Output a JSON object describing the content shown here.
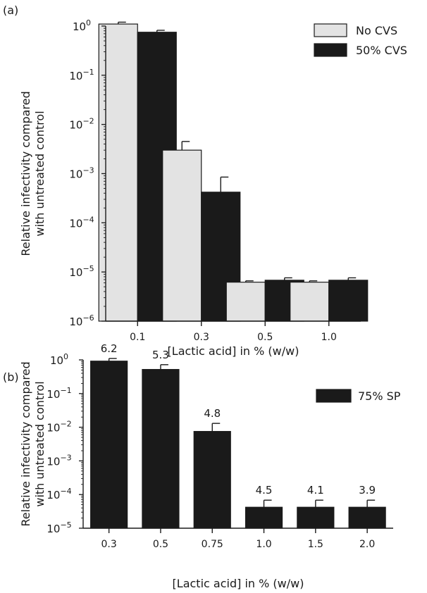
{
  "chart_data": [
    {
      "type": "bar",
      "panel_label": "(a)",
      "yscale": "log",
      "ylim": [
        1e-06,
        1
      ],
      "ylabel_lines": [
        "Relative infectivity compared",
        "with untreated control"
      ],
      "xlabel": "[Lactic acid] in % (w/w)",
      "categories": [
        "0.1",
        "0.3",
        "0.5",
        "1.0"
      ],
      "y_ticks": [
        {
          "value": 1,
          "base": "10",
          "exp": "0"
        },
        {
          "value": 0.1,
          "base": "10",
          "exp": "−1"
        },
        {
          "value": 0.01,
          "base": "10",
          "exp": "−2"
        },
        {
          "value": 0.001,
          "base": "10",
          "exp": "−3"
        },
        {
          "value": 0.0001,
          "base": "10",
          "exp": "−4"
        },
        {
          "value": 1e-05,
          "base": "10",
          "exp": "−5"
        },
        {
          "value": 1e-06,
          "base": "10",
          "exp": "−6"
        }
      ],
      "legend_position": "top-right",
      "series": [
        {
          "name": "No CVS",
          "color": "#e3e3e3",
          "values": [
            1.1,
            0.003,
            6.2e-06,
            6.2e-06
          ],
          "error": [
            1.2,
            0.0045,
            6.6e-06,
            6.6e-06
          ]
        },
        {
          "name": "50% CVS",
          "color": "#1a1a1a",
          "values": [
            0.75,
            0.00042,
            6.8e-06,
            6.8e-06
          ],
          "error": [
            0.82,
            0.00085,
            7.6e-06,
            7.6e-06
          ]
        }
      ]
    },
    {
      "type": "bar",
      "panel_label": "(b)",
      "yscale": "log",
      "ylim": [
        1e-05,
        1
      ],
      "ylabel_lines": [
        "Relative infectivity compared",
        "with untreated control"
      ],
      "xlabel": "[Lactic acid] in % (w/w)",
      "categories": [
        "0.3",
        "0.5",
        "0.75",
        "1.0",
        "1.5",
        "2.0"
      ],
      "y_ticks": [
        {
          "value": 1,
          "base": "10",
          "exp": "0"
        },
        {
          "value": 0.1,
          "base": "10",
          "exp": "−1"
        },
        {
          "value": 0.01,
          "base": "10",
          "exp": "−2"
        },
        {
          "value": 0.001,
          "base": "10",
          "exp": "−3"
        },
        {
          "value": 0.0001,
          "base": "10",
          "exp": "−4"
        },
        {
          "value": 1e-05,
          "base": "10",
          "exp": "−5"
        }
      ],
      "legend_position": "top-right",
      "series": [
        {
          "name": "75% SP",
          "color": "#1a1a1a",
          "values": [
            0.92,
            0.52,
            0.0075,
            4.2e-05,
            4.2e-05,
            4.2e-05
          ],
          "error": [
            1.1,
            0.72,
            0.013,
            6.8e-05,
            6.8e-05,
            6.8e-05
          ]
        }
      ],
      "data_labels": [
        "6.2",
        "5.3",
        "4.8",
        "4.5",
        "4.1",
        "3.9"
      ]
    }
  ]
}
